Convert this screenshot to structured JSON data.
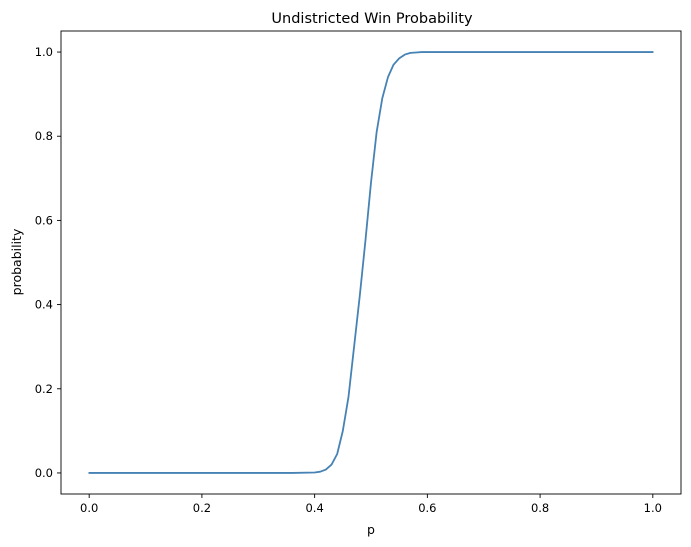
{
  "chart_data": {
    "type": "line",
    "title": "Undistricted Win Probability",
    "xlabel": "p",
    "ylabel": "probability",
    "xlim": [
      -0.05,
      1.05
    ],
    "ylim": [
      -0.05,
      1.05
    ],
    "grid": false,
    "legend": "none",
    "xticks": [
      {
        "value": 0.0,
        "label": "0.0"
      },
      {
        "value": 0.2,
        "label": "0.2"
      },
      {
        "value": 0.4,
        "label": "0.4"
      },
      {
        "value": 0.6,
        "label": "0.6"
      },
      {
        "value": 0.8,
        "label": "0.8"
      },
      {
        "value": 1.0,
        "label": "1.0"
      }
    ],
    "yticks": [
      {
        "value": 0.0,
        "label": "0.0"
      },
      {
        "value": 0.2,
        "label": "0.2"
      },
      {
        "value": 0.4,
        "label": "0.4"
      },
      {
        "value": 0.6,
        "label": "0.6"
      },
      {
        "value": 0.8,
        "label": "0.8"
      },
      {
        "value": 1.0,
        "label": "1.0"
      }
    ],
    "series": [
      {
        "color": "#4682b4",
        "x": [
          0.0,
          0.1,
          0.2,
          0.3,
          0.36,
          0.4,
          0.41,
          0.42,
          0.43,
          0.44,
          0.45,
          0.46,
          0.47,
          0.48,
          0.49,
          0.5,
          0.51,
          0.52,
          0.53,
          0.54,
          0.55,
          0.56,
          0.57,
          0.58,
          0.59,
          0.6,
          0.65,
          0.7,
          0.8,
          0.9,
          1.0
        ],
        "y": [
          0.0,
          0.0,
          0.0,
          0.0,
          0.0,
          0.001,
          0.003,
          0.008,
          0.02,
          0.045,
          0.1,
          0.18,
          0.3,
          0.42,
          0.55,
          0.69,
          0.81,
          0.89,
          0.94,
          0.97,
          0.985,
          0.994,
          0.998,
          0.999,
          1.0,
          1.0,
          1.0,
          1.0,
          1.0,
          1.0,
          1.0
        ]
      }
    ]
  }
}
